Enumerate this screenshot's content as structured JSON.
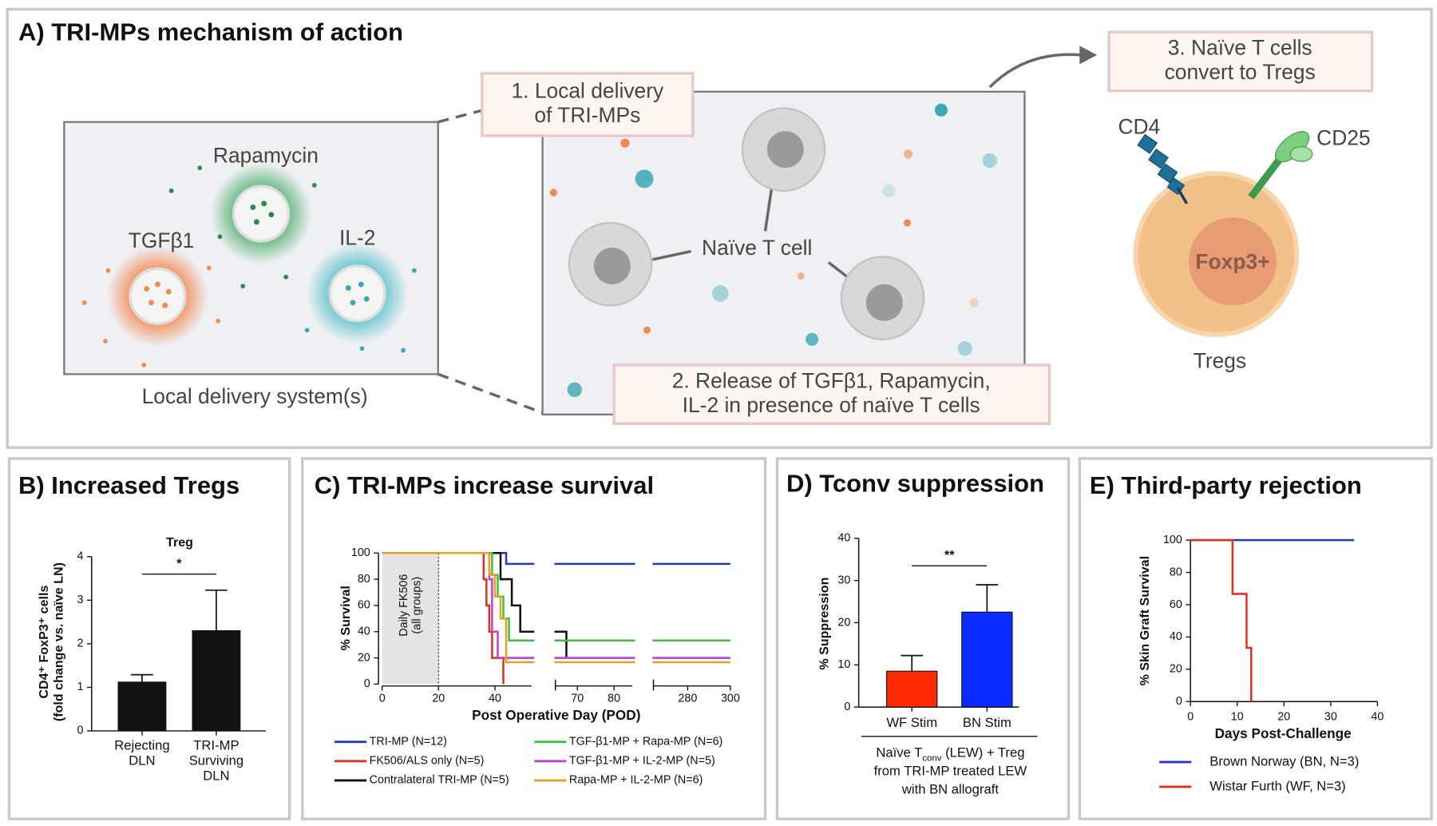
{
  "panel_a": {
    "title": "A) TRI-MPs mechanism of action",
    "rapamycin": "Rapamycin",
    "tgfb1": "TGFβ1",
    "il2": "IL-2",
    "delivery_system": "Local delivery system(s)",
    "step1": "1. Local delivery\nof TRI-MPs",
    "naive_t_cell": "Naïve T cell",
    "step2": "2. Release of TGFβ1, Rapamycin,\nIL-2 in presence of naïve T cells",
    "step3": "3. Naïve T cells\nconvert to Tregs",
    "cd4": "CD4",
    "cd25": "CD25",
    "foxp3": "Foxp3+",
    "tregs": "Tregs"
  },
  "chart_data": [
    {
      "type": "bar",
      "panel_title": "B) Increased Tregs",
      "title": "Treg",
      "ylabel": "CD4⁺ FoxP3⁺ cells\n(fold change vs. naïve LN)",
      "categories": [
        "Rejecting\nDLN",
        "TRI-MP\nSurviving\nDLN"
      ],
      "values": [
        1.12,
        2.3
      ],
      "errors": [
        0.17,
        0.93
      ],
      "color": "#111111",
      "ylim": [
        0,
        4
      ],
      "yticks": [
        0,
        1,
        2,
        3,
        4
      ],
      "significance": "*"
    },
    {
      "type": "step",
      "panel_title": "C) TRI-MPs increase survival",
      "xlabel": "Post Operative Day (POD)",
      "ylabel": "% Survival",
      "annotation": "Daily FK506\n(all groups)",
      "shaded_region": [
        0,
        20
      ],
      "xlim": [
        [
          0,
          53
        ],
        [
          64,
          85
        ],
        [
          264,
          300
        ]
      ],
      "xticks": [
        0,
        20,
        40,
        70,
        80,
        280,
        300
      ],
      "ylim": [
        0,
        100
      ],
      "yticks": [
        0,
        20,
        40,
        60,
        80,
        100
      ],
      "legend": "bottom",
      "series": [
        {
          "name": "TRI-MP (N=12)",
          "color": "#2438c4",
          "x": [
            0,
            44,
            300
          ],
          "values": [
            100,
            91.7,
            91.7
          ]
        },
        {
          "name": "FK506/ALS only (N=5)",
          "color": "#e0301e",
          "x": [
            0,
            36,
            37,
            38,
            39,
            43
          ],
          "values": [
            100,
            80,
            60,
            40,
            20,
            0
          ]
        },
        {
          "name": "Contralateral TRI-MP (N=5)",
          "color": "#111111",
          "x": [
            0,
            42,
            46,
            49,
            67
          ],
          "values": [
            100,
            80,
            60,
            40,
            20
          ]
        },
        {
          "name": "TGF-β1-MP + Rapa-MP (N=6)",
          "color": "#3cc23c",
          "x": [
            0,
            39,
            41,
            43,
            45,
            300
          ],
          "values": [
            100,
            83.3,
            66.7,
            50,
            33.3,
            33.3
          ]
        },
        {
          "name": "TGF-β1-MP + IL-2-MP (N=5)",
          "color": "#c040d0",
          "x": [
            0,
            38,
            39,
            41,
            300
          ],
          "values": [
            100,
            80,
            40,
            20,
            20
          ]
        },
        {
          "name": "Rapa-MP + IL-2-MP (N=6)",
          "color": "#e8a020",
          "x": [
            0,
            38,
            40,
            42,
            44,
            300
          ],
          "values": [
            100,
            83.3,
            66.7,
            50,
            16.7,
            16.7
          ]
        }
      ]
    },
    {
      "type": "bar",
      "panel_title": "D) Tconv suppression",
      "ylabel": "% Suppression",
      "categories": [
        "WF Stim",
        "BN Stim"
      ],
      "values": [
        8.5,
        22.5
      ],
      "errors": [
        3.7,
        6.5
      ],
      "colors": [
        "#ff2a00",
        "#0a2aff"
      ],
      "ylim": [
        0,
        40
      ],
      "yticks": [
        0,
        10,
        20,
        30,
        40
      ],
      "significance": "**",
      "caption": [
        [
          "Naïve T",
          "conv",
          " (LEW) + Treg"
        ],
        [
          "from TRI-MP treated LEW"
        ],
        [
          "with BN allograft"
        ]
      ]
    },
    {
      "type": "step",
      "panel_title": "E) Third-party rejection",
      "xlabel": "Days Post-Challenge",
      "ylabel": "% Skin Graft Survival",
      "xlim": [
        0,
        40
      ],
      "xticks": [
        0,
        10,
        20,
        30,
        40
      ],
      "ylim": [
        0,
        100
      ],
      "yticks": [
        0,
        20,
        40,
        60,
        80,
        100
      ],
      "legend": "bottom",
      "series": [
        {
          "name": "Brown Norway (BN, N=3)",
          "color": "#2438c4",
          "x": [
            0,
            35
          ],
          "values": [
            100,
            100
          ]
        },
        {
          "name": "Wistar Furth (WF, N=3)",
          "color": "#e0301e",
          "x": [
            0,
            9,
            12,
            13
          ],
          "values": [
            100,
            66.7,
            33.3,
            0
          ]
        }
      ]
    }
  ]
}
